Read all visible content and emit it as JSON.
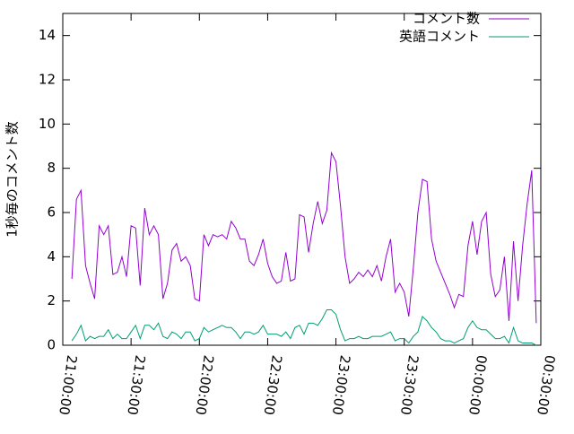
{
  "chart_data": {
    "type": "line",
    "y_label": "1秒毎のコメント数",
    "x": [
      4,
      6,
      8,
      10,
      12,
      14,
      16,
      18,
      20,
      22,
      24,
      26,
      28,
      30,
      32,
      34,
      36,
      38,
      40,
      42,
      44,
      46,
      48,
      50,
      52,
      54,
      56,
      58,
      60,
      62,
      64,
      66,
      68,
      70,
      72,
      74,
      76,
      78,
      80,
      82,
      84,
      86,
      88,
      90,
      92,
      94,
      96,
      98,
      100,
      102,
      104,
      106,
      108,
      110,
      112,
      114,
      116,
      118,
      120,
      122,
      124,
      126,
      128,
      130,
      132,
      134,
      136,
      138,
      140,
      142,
      144,
      146,
      148,
      150,
      152,
      154,
      156,
      158,
      160,
      162,
      164,
      166,
      168,
      170,
      172,
      174,
      176,
      178,
      180,
      182,
      184,
      186,
      188,
      190,
      192,
      194,
      196,
      198,
      200,
      202,
      204,
      206,
      208
    ],
    "series": [
      {
        "name": "コメント数",
        "color": "#9400d3",
        "values": [
          3.0,
          6.6,
          7.0,
          3.6,
          2.8,
          2.1,
          5.4,
          5.0,
          5.4,
          3.2,
          3.3,
          4.0,
          3.1,
          5.4,
          5.3,
          2.7,
          6.2,
          5.0,
          5.4,
          5.0,
          2.1,
          2.8,
          4.3,
          4.6,
          3.8,
          4.0,
          3.6,
          2.1,
          2.0,
          5.0,
          4.5,
          5.0,
          4.9,
          5.0,
          4.8,
          5.6,
          5.3,
          4.8,
          4.8,
          3.8,
          3.6,
          4.1,
          4.8,
          3.7,
          3.1,
          2.8,
          2.9,
          4.2,
          2.9,
          3.0,
          5.9,
          5.8,
          4.2,
          5.5,
          6.5,
          5.5,
          6.1,
          8.7,
          8.3,
          6.3,
          4.0,
          2.8,
          3.0,
          3.3,
          3.1,
          3.4,
          3.1,
          3.6,
          2.9,
          4.0,
          4.8,
          2.4,
          2.8,
          2.4,
          1.3,
          3.5,
          6.0,
          7.5,
          7.4,
          4.8,
          3.8,
          3.3,
          2.8,
          2.3,
          1.7,
          2.3,
          2.2,
          4.5,
          5.6,
          4.1,
          5.6,
          6.0,
          3.2,
          2.2,
          2.5,
          4.0,
          1.1,
          4.7,
          2.0,
          4.5,
          6.4,
          7.9,
          1.0
        ]
      },
      {
        "name": "英語コメント",
        "color": "#009e73",
        "values": [
          0.2,
          0.5,
          0.9,
          0.2,
          0.4,
          0.3,
          0.4,
          0.4,
          0.7,
          0.3,
          0.5,
          0.3,
          0.3,
          0.6,
          0.9,
          0.3,
          0.9,
          0.9,
          0.7,
          1.0,
          0.4,
          0.3,
          0.6,
          0.5,
          0.3,
          0.6,
          0.6,
          0.2,
          0.3,
          0.8,
          0.6,
          0.7,
          0.8,
          0.9,
          0.8,
          0.8,
          0.6,
          0.3,
          0.6,
          0.6,
          0.5,
          0.6,
          0.9,
          0.5,
          0.5,
          0.5,
          0.4,
          0.6,
          0.3,
          0.8,
          0.9,
          0.5,
          1.0,
          1.0,
          0.9,
          1.2,
          1.6,
          1.6,
          1.4,
          0.7,
          0.2,
          0.3,
          0.3,
          0.4,
          0.3,
          0.3,
          0.4,
          0.4,
          0.4,
          0.5,
          0.6,
          0.2,
          0.3,
          0.3,
          0.1,
          0.4,
          0.6,
          1.3,
          1.1,
          0.8,
          0.6,
          0.3,
          0.2,
          0.2,
          0.1,
          0.2,
          0.3,
          0.8,
          1.1,
          0.8,
          0.7,
          0.7,
          0.5,
          0.3,
          0.3,
          0.4,
          0.1,
          0.8,
          0.2,
          0.1,
          0.1,
          0.1,
          0.0
        ]
      }
    ],
    "xlim": [
      0,
      210
    ],
    "xticks": [
      {
        "value": 0,
        "label": "21:00:00"
      },
      {
        "value": 30,
        "label": "21:30:00"
      },
      {
        "value": 60,
        "label": "22:00:00"
      },
      {
        "value": 90,
        "label": "22:30:00"
      },
      {
        "value": 120,
        "label": "23:00:00"
      },
      {
        "value": 150,
        "label": "23:30:00"
      },
      {
        "value": 180,
        "label": "00:00:00"
      },
      {
        "value": 210,
        "label": "00:30:00"
      }
    ],
    "ylim": [
      0,
      15
    ],
    "yticks": [
      0,
      2,
      4,
      6,
      8,
      10,
      12,
      14
    ],
    "legend": "top-right"
  }
}
